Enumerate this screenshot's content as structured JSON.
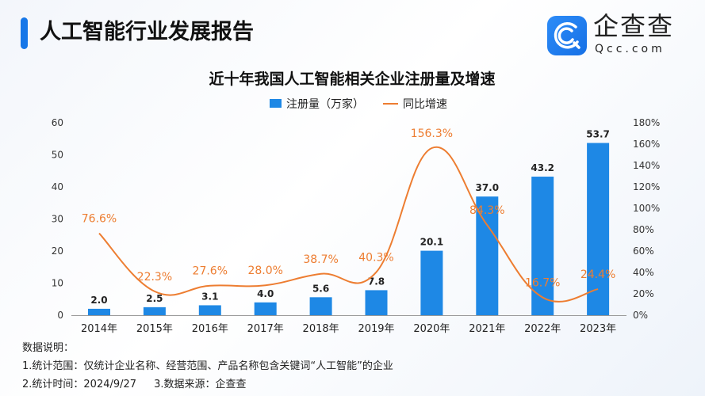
{
  "header": {
    "title": "人工智能行业发展报告",
    "brand": "企查查",
    "brand_domain": "Qcc.com",
    "brand_color": "#1677e8"
  },
  "chart_data": {
    "type": "bar+line",
    "title": "近十年我国人工智能相关企业注册量及增速",
    "categories": [
      "2014年",
      "2015年",
      "2016年",
      "2017年",
      "2018年",
      "2019年",
      "2020年",
      "2021年",
      "2022年",
      "2023年"
    ],
    "series": [
      {
        "name": "注册量（万家）",
        "type": "bar",
        "axis": "left",
        "color": "#1e88e5",
        "values": [
          2.0,
          2.5,
          3.1,
          4.0,
          5.6,
          7.8,
          20.1,
          37.0,
          43.2,
          53.7
        ],
        "labels": [
          "2.0",
          "2.5",
          "3.1",
          "4.0",
          "5.6",
          "7.8",
          "20.1",
          "37.0",
          "43.2",
          "53.7"
        ]
      },
      {
        "name": "同比增速",
        "type": "line",
        "axis": "right",
        "color": "#ed7d31",
        "values": [
          76.6,
          22.3,
          27.6,
          28.0,
          38.7,
          40.3,
          156.3,
          84.3,
          16.7,
          24.4
        ],
        "labels": [
          "76.6%",
          "22.3%",
          "27.6%",
          "28.0%",
          "38.7%",
          "40.3%",
          "156.3%",
          "84.3%",
          "16.7%",
          "24.4%"
        ]
      }
    ],
    "y_left": {
      "range": [
        0,
        60
      ],
      "ticks": [
        "0",
        "10",
        "20",
        "30",
        "40",
        "50",
        "60"
      ]
    },
    "y_right": {
      "range": [
        0,
        180
      ],
      "ticks": [
        "0%",
        "20%",
        "40%",
        "60%",
        "80%",
        "100%",
        "120%",
        "140%",
        "160%",
        "180%"
      ]
    },
    "legend": "top-center",
    "grid": false
  },
  "notes": {
    "heading": "数据说明：",
    "line1": "1.统计范围：仅统计企业名称、经营范围、产品名称包含关键词“人工智能”的企业",
    "line2a": "2.统计时间：2024/9/27",
    "line2b": "3.数据来源：企查查"
  }
}
